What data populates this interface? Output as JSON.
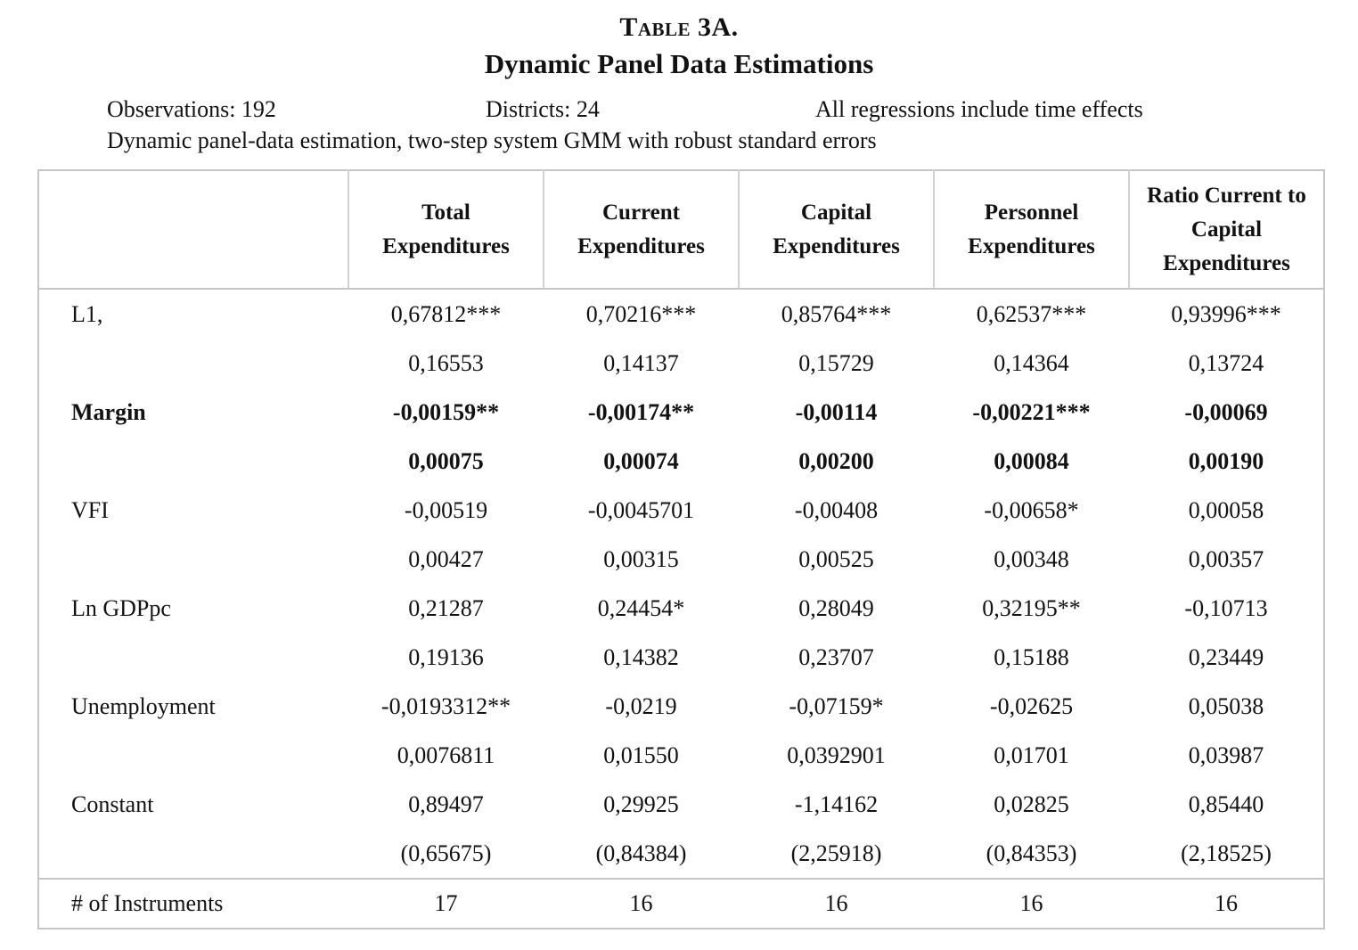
{
  "page": {
    "title": "Table 3A.",
    "subtitle": "Dynamic Panel Data Estimations",
    "meta": {
      "observations": "Observations: 192",
      "districts": "Districts: 24",
      "time_effects": "All regressions include time effects",
      "method": "Dynamic panel-data estimation, two-step system GMM with robust standard errors"
    }
  },
  "table": {
    "column_headers": [
      "Total Expenditures",
      "Current Expenditures",
      "Capital Expenditures",
      "Personnel Expenditures",
      "Ratio Current to Capital Expenditures"
    ],
    "rows": [
      {
        "label": "L1,",
        "bold": false,
        "coef": [
          "0,67812***",
          "0,70216***",
          "0,85764***",
          "0,62537***",
          "0,93996***"
        ],
        "se": [
          "0,16553",
          "0,14137",
          "0,15729",
          "0,14364",
          "0,13724"
        ]
      },
      {
        "label": "Margin",
        "bold": true,
        "coef": [
          "-0,00159**",
          "-0,00174**",
          "-0,00114",
          "-0,00221***",
          "-0,00069"
        ],
        "se": [
          "0,00075",
          "0,00074",
          "0,00200",
          "0,00084",
          "0,00190"
        ]
      },
      {
        "label": "VFI",
        "bold": false,
        "coef": [
          "-0,00519",
          "-0,0045701",
          "-0,00408",
          "-0,00658*",
          "0,00058"
        ],
        "se": [
          "0,00427",
          "0,00315",
          "0,00525",
          "0,00348",
          "0,00357"
        ]
      },
      {
        "label": "Ln GDPpc",
        "bold": false,
        "coef": [
          "0,21287",
          "0,24454*",
          "0,28049",
          "0,32195**",
          "-0,10713"
        ],
        "se": [
          "0,19136",
          "0,14382",
          "0,23707",
          "0,15188",
          "0,23449"
        ]
      },
      {
        "label": "Unemployment",
        "bold": false,
        "coef": [
          "-0,0193312**",
          "-0,0219",
          "-0,07159*",
          "-0,02625",
          "0,05038"
        ],
        "se": [
          "0,0076811",
          "0,01550",
          "0,0392901",
          "0,01701",
          "0,03987"
        ]
      },
      {
        "label": "Constant",
        "bold": false,
        "coef": [
          "0,89497",
          "0,29925",
          "-1,14162",
          "0,02825",
          "0,85440"
        ],
        "se": [
          "(0,65675)",
          "(0,84384)",
          "(2,25918)",
          "(0,84353)",
          "(2,18525)"
        ]
      }
    ],
    "footer": {
      "label": "# of Instruments",
      "values": [
        "17",
        "16",
        "16",
        "16",
        "16"
      ]
    }
  }
}
